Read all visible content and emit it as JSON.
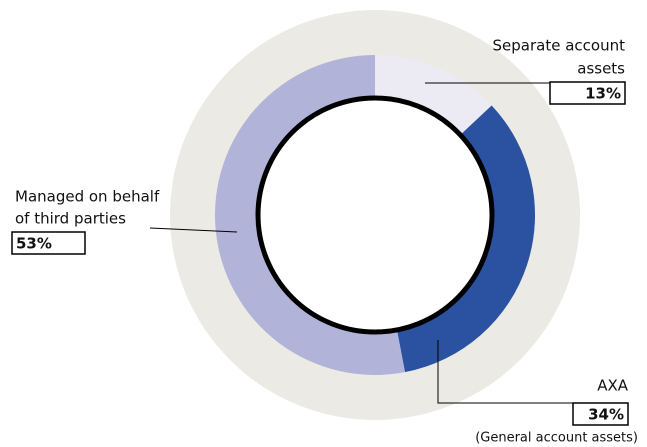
{
  "chart_data": {
    "type": "donut",
    "categories": [
      [
        "Separate account",
        "assets"
      ],
      [
        "AXA"
      ],
      [
        "Managed on behalf",
        "of third parties"
      ]
    ],
    "values": [
      13,
      34,
      53
    ],
    "value_labels": [
      "13%",
      "34%",
      "53%"
    ],
    "colors": [
      "#ecebf3",
      "#2a52a0",
      "#b1b3d8"
    ],
    "annotation": "(General account assets)"
  }
}
